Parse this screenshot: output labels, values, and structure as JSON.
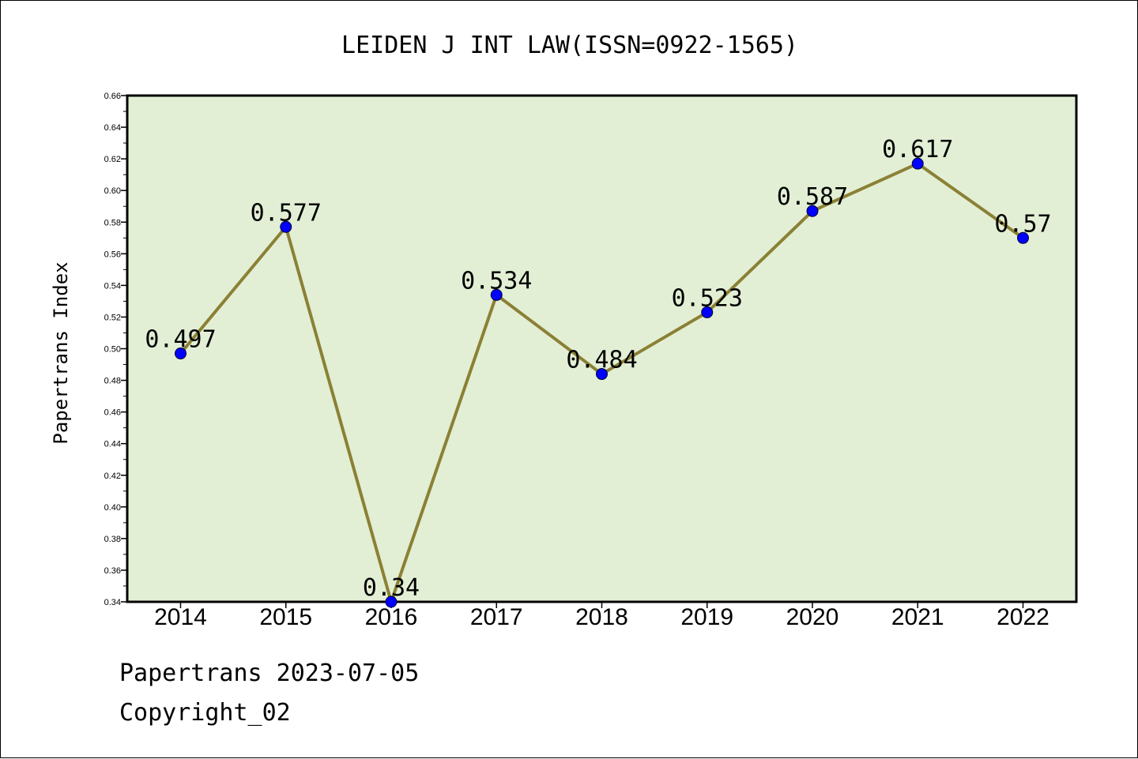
{
  "chart_data": {
    "type": "line",
    "title": "LEIDEN J INT LAW(ISSN=0922-1565)",
    "xlabel": "",
    "ylabel": "Papertrans Index",
    "categories": [
      "2014",
      "2015",
      "2016",
      "2017",
      "2018",
      "2019",
      "2020",
      "2021",
      "2022"
    ],
    "series": [
      {
        "values": [
          0.497,
          0.577,
          0.34,
          0.534,
          0.484,
          0.523,
          0.587,
          0.617,
          0.57
        ],
        "data_labels": [
          "0.497",
          "0.577",
          "0.34",
          "0.534",
          "0.484",
          "0.523",
          "0.587",
          "0.617",
          "0.57"
        ]
      }
    ],
    "ylim": [
      0.34,
      0.66
    ],
    "y_ticks": [
      "0.34",
      "0.36",
      "0.38",
      "0.40",
      "0.42",
      "0.44",
      "0.46",
      "0.48",
      "0.50",
      "0.52",
      "0.54",
      "0.56",
      "0.58",
      "0.60",
      "0.62",
      "0.64",
      "0.66"
    ],
    "grid": false,
    "colors": {
      "plot_background": "#e2efd5",
      "line": "#8b8034",
      "marker": "#0000ff",
      "axes": "#000000"
    }
  },
  "footer": {
    "line1": "Papertrans 2023-07-05",
    "line2": "Copyright_02"
  }
}
